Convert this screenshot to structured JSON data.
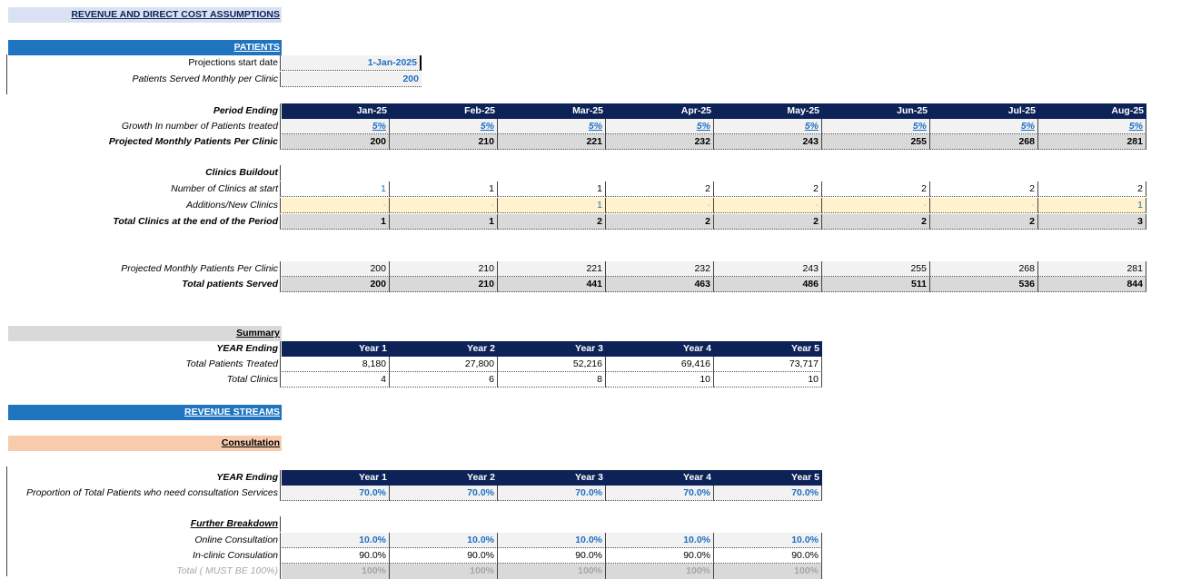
{
  "title": "REVENUE AND DIRECT COST ASSUMPTIONS",
  "patients_section": "PATIENTS",
  "start_date": {
    "label": "Projections  start date",
    "value": "1-Jan-2025"
  },
  "patients_served": {
    "label": "Patients Served  Monthly per Clinic",
    "value": "200"
  },
  "months": {
    "label": "Period Ending",
    "values": [
      "Jan-25",
      "Feb-25",
      "Mar-25",
      "Apr-25",
      "May-25",
      "Jun-25",
      "Jul-25",
      "Aug-25"
    ]
  },
  "growth": {
    "label": "Growth In number of Patients treated",
    "values": [
      "5%",
      "5%",
      "5%",
      "5%",
      "5%",
      "5%",
      "5%",
      "5%"
    ]
  },
  "projected_monthly": {
    "label": "Projected  Monthly Patients Per Clinic",
    "values": [
      "200",
      "210",
      "221",
      "232",
      "243",
      "255",
      "268",
      "281"
    ]
  },
  "clinics_buildout": "Clinics Buildout",
  "clinics_start": {
    "label": "Number of Clinics at start",
    "values": [
      "1",
      "1",
      "1",
      "2",
      "2",
      "2",
      "2",
      "2"
    ]
  },
  "additions": {
    "label": "Additions/New Clinics",
    "values": [
      "-",
      "-",
      "1",
      "-",
      "-",
      "-",
      "-",
      "1"
    ]
  },
  "total_clinics": {
    "label": "Total Clinics at the end of the  Period",
    "values": [
      "1",
      "1",
      "2",
      "2",
      "2",
      "2",
      "2",
      "3"
    ]
  },
  "projected_monthly2": {
    "label": "Projected  Monthly Patients Per Clinic",
    "values": [
      "200",
      "210",
      "221",
      "232",
      "243",
      "255",
      "268",
      "281"
    ]
  },
  "total_served": {
    "label": "Total patients Served",
    "values": [
      "200",
      "210",
      "441",
      "463",
      "486",
      "511",
      "536",
      "844"
    ]
  },
  "summary": {
    "heading": "Summary",
    "year_label": "YEAR Ending",
    "years": [
      "Year 1",
      "Year 2",
      "Year 3",
      "Year 4",
      "Year 5"
    ],
    "treated": {
      "label": "Total Patients Treated",
      "values": [
        "8,180",
        "27,800",
        "52,216",
        "69,416",
        "73,717"
      ]
    },
    "clinics": {
      "label": "Total Clinics",
      "values": [
        "4",
        "6",
        "8",
        "10",
        "10"
      ]
    }
  },
  "revenue_streams": "REVENUE STREAMS",
  "consultation": {
    "heading": "Consultation",
    "year_label": "YEAR Ending",
    "years": [
      "Year 1",
      "Year 2",
      "Year 3",
      "Year 4",
      "Year 5"
    ],
    "proportion": {
      "label": "Proportion of Total Patients who need consultation Services",
      "values": [
        "70.0%",
        "70.0%",
        "70.0%",
        "70.0%",
        "70.0%"
      ]
    },
    "breakdown": "Further Breakdown",
    "online": {
      "label": "Online Consultation",
      "values": [
        "10.0%",
        "10.0%",
        "10.0%",
        "10.0%",
        "10.0%"
      ]
    },
    "inclinic": {
      "label": "In-clinic Consulation",
      "values": [
        "90.0%",
        "90.0%",
        "90.0%",
        "90.0%",
        "90.0%"
      ]
    },
    "total": {
      "label": "Total ( MUST BE 100%)",
      "values": [
        "100%",
        "100%",
        "100%",
        "100%",
        "100%"
      ]
    }
  },
  "colors": {
    "navy": "#0d2357",
    "blue_section": "#1f74c0",
    "input_blue": "#1f6fc1",
    "peach": "#f8cbad",
    "yellow": "#fff2cc"
  }
}
